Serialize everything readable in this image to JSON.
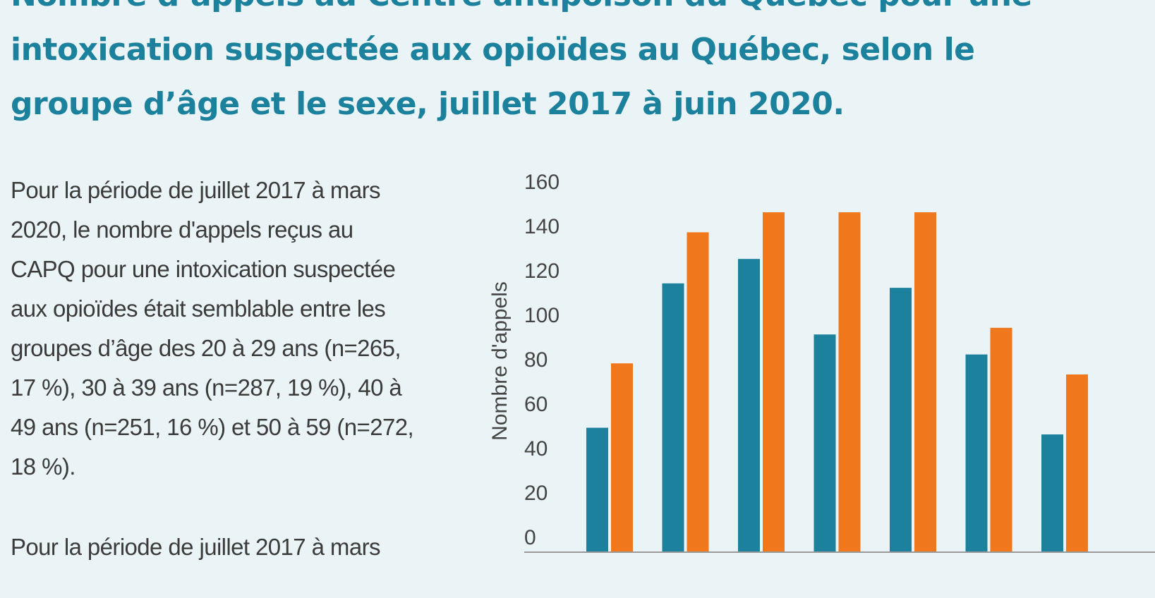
{
  "title_lines": [
    "Nombre d’appels au Centre antipoison du Québec pour une",
    "intoxication suspectée aux opioïdes au Québec, selon le",
    "groupe d’âge et le sexe, juillet 2017 à juin 2020."
  ],
  "paragraphs": [
    [
      "Pour la période de juillet 2017 à mars",
      "2020, le nombre d'appels reçus au",
      "CAPQ pour une intoxication suspectée",
      "aux opioïdes était semblable entre les",
      "groupes d’âge des 20 à 29 ans (n=265,",
      "17 %), 30 à 39 ans (n=287, 19 %), 40 à",
      "49 ans (n=251, 16 %) et 50 à 59 (n=272,",
      "18 %)."
    ],
    [
      "Pour la période de juillet 2017 à mars"
    ]
  ],
  "chart_data": {
    "type": "bar",
    "ylabel": "Nombre d'appels",
    "categories": [
      null,
      null,
      null,
      null,
      null,
      null,
      null
    ],
    "series": [
      {
        "color": "#1b819c",
        "values": [
          56,
          121,
          132,
          98,
          119,
          89,
          53
        ]
      },
      {
        "color": "#f0771c",
        "values": [
          85,
          144,
          153,
          153,
          153,
          101,
          80
        ]
      }
    ],
    "ylim": [
      0,
      160
    ],
    "yticks": [
      0,
      20,
      40,
      60,
      80,
      100,
      120,
      140,
      160
    ]
  }
}
